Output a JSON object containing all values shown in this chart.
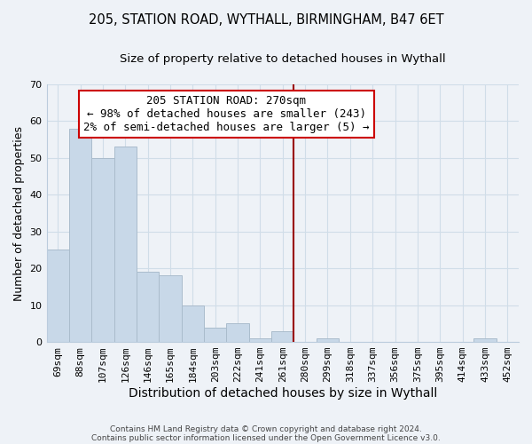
{
  "title1": "205, STATION ROAD, WYTHALL, BIRMINGHAM, B47 6ET",
  "title2": "Size of property relative to detached houses in Wythall",
  "xlabel": "Distribution of detached houses by size in Wythall",
  "ylabel": "Number of detached properties",
  "footer1": "Contains HM Land Registry data © Crown copyright and database right 2024.",
  "footer2": "Contains public sector information licensed under the Open Government Licence v3.0.",
  "categories": [
    "69sqm",
    "88sqm",
    "107sqm",
    "126sqm",
    "146sqm",
    "165sqm",
    "184sqm",
    "203sqm",
    "222sqm",
    "241sqm",
    "261sqm",
    "280sqm",
    "299sqm",
    "318sqm",
    "337sqm",
    "356sqm",
    "375sqm",
    "395sqm",
    "414sqm",
    "433sqm",
    "452sqm"
  ],
  "values": [
    25,
    58,
    50,
    53,
    19,
    18,
    10,
    4,
    5,
    1,
    3,
    0,
    1,
    0,
    0,
    0,
    0,
    0,
    0,
    1,
    0
  ],
  "bar_color": "#c8d8e8",
  "bar_edge_color": "#aabccc",
  "annotation_title": "205 STATION ROAD: 270sqm",
  "annotation_line1": "← 98% of detached houses are smaller (243)",
  "annotation_line2": "2% of semi-detached houses are larger (5) →",
  "ylim": [
    0,
    70
  ],
  "vline_color": "#990000",
  "annotation_box_color": "#ffffff",
  "annotation_border_color": "#cc0000",
  "grid_color": "#d0dde8",
  "background_color": "#eef2f7",
  "title1_fontsize": 10.5,
  "title2_fontsize": 9.5,
  "xlabel_fontsize": 10,
  "ylabel_fontsize": 9,
  "tick_fontsize": 8,
  "annotation_fontsize": 9,
  "footer_fontsize": 6.5
}
